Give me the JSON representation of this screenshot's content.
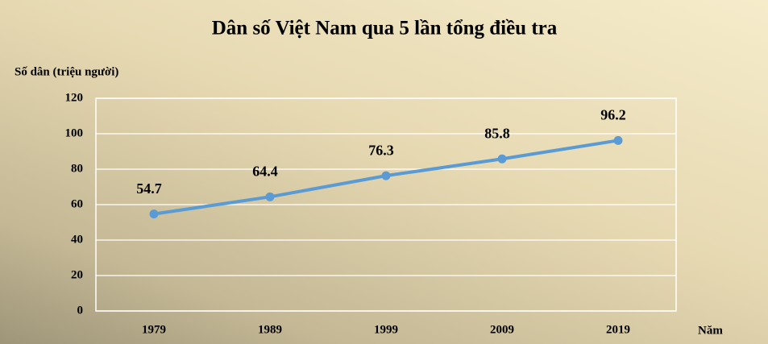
{
  "chart_data": {
    "type": "line",
    "title": "Dân số Việt Nam qua 5 lần tổng điều tra",
    "y_label": "Số dân (triệu người)",
    "x_label": "Năm",
    "categories": [
      "1979",
      "1989",
      "1999",
      "2009",
      "2019"
    ],
    "values": [
      54.7,
      64.4,
      76.3,
      85.8,
      96.2
    ],
    "color": "#5b9bd5",
    "ylim": [
      0,
      120
    ],
    "yticks": [
      0,
      20,
      40,
      60,
      80,
      100,
      120
    ],
    "grid": true
  }
}
